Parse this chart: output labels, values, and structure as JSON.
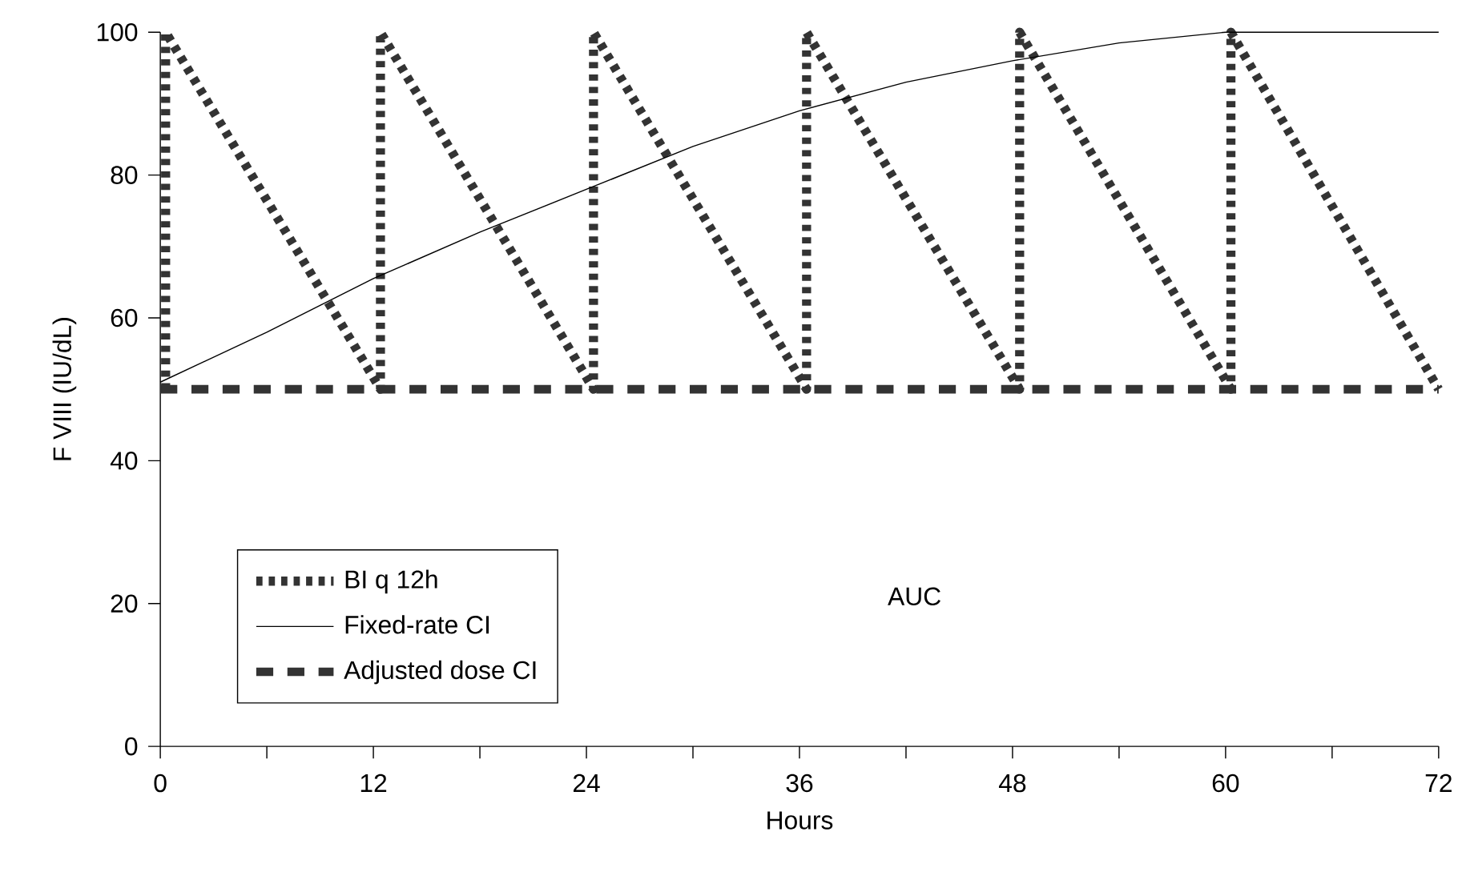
{
  "chart_data": {
    "type": "line",
    "xlabel": "Hours",
    "ylabel": "F VIII (IU/dL)",
    "xlim": [
      0,
      72
    ],
    "ylim": [
      0,
      100
    ],
    "xticks": [
      0,
      {
        "value": 6,
        "label": null
      },
      12,
      {
        "value": 18,
        "label": null
      },
      24,
      {
        "value": 30,
        "label": null
      },
      36,
      {
        "value": 42,
        "label": null
      },
      48,
      {
        "value": 54,
        "label": null
      },
      60,
      {
        "value": 66,
        "label": null
      },
      72
    ],
    "yticks": [
      0,
      20,
      40,
      60,
      80,
      100
    ],
    "legend": "bottom left",
    "grid": false,
    "marker": "none",
    "annotations": [
      "AUC"
    ],
    "series": [
      {
        "name": "BI q 12h",
        "color": "#333333",
        "line_style": "dotted",
        "x": [
          0.3,
          0.3,
          12.4,
          12.4,
          24.4,
          24.4,
          36.4,
          36.4,
          48.4,
          48.4,
          60.3,
          60.3,
          72
        ],
        "values": [
          50,
          100,
          50,
          100,
          50,
          100,
          50,
          100,
          50,
          100,
          50,
          100,
          50
        ]
      },
      {
        "name": "Fixed-rate CI",
        "color": "#000000",
        "line_style": "solid",
        "x": [
          0,
          6,
          12,
          18,
          24,
          30,
          36,
          42,
          48,
          54,
          60,
          66,
          72
        ],
        "values": [
          51,
          58,
          65.5,
          72,
          78,
          84,
          89,
          93,
          96,
          98.5,
          100,
          100,
          100
        ]
      },
      {
        "name": "Adjusted dose CI",
        "color": "#333333",
        "line_style": "dashed",
        "x": [
          0,
          72
        ],
        "values": [
          50,
          50
        ]
      }
    ]
  }
}
